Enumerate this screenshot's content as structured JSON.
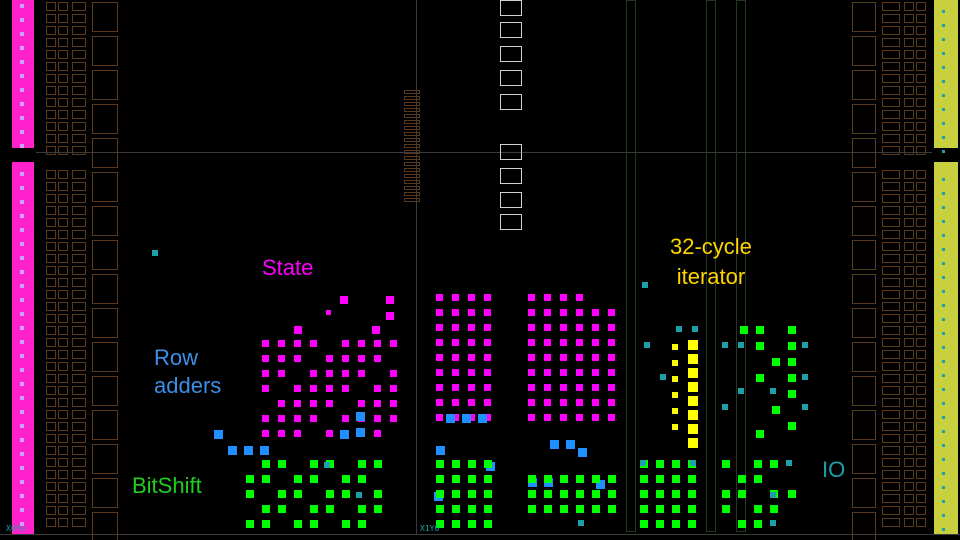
{
  "labels": {
    "state": "State",
    "row_adders": "Row\nadders",
    "bitshift": "BitShift",
    "iterator": "32-cycle\niterator",
    "io": "IO"
  },
  "coords": {
    "origin": "X0Y0",
    "tile": "X1Y0"
  },
  "colors": {
    "state": "#ff00ff",
    "row_adders": "#1e90ff",
    "bitshift": "#00ff00",
    "iterator": "#ffff00",
    "io": "#1ea0a8",
    "left_column": "#ff22cc",
    "right_column": "#c8d040",
    "region_outline": "#5a3a1a",
    "clock_outline": "#2a2a2a",
    "bram_outline": "#d0d0d0"
  }
}
